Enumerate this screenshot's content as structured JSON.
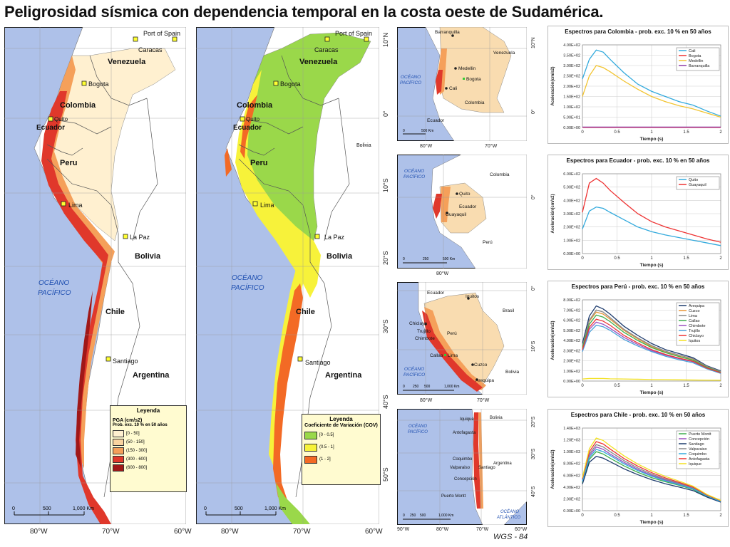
{
  "title": "Peligrosidad sísmica con dependencia temporal en la costa oeste de Sudamérica.",
  "colors": {
    "ocean": "#aec1e9",
    "land": "#ffffff",
    "pga_0_50": "#fff0d0",
    "pga_50_150": "#f9d4a0",
    "pga_150_300": "#f5a05a",
    "pga_300_600": "#e0382b",
    "pga_600_800": "#a01818",
    "cov_0_05": "#9ad84a",
    "cov_05_1": "#f7f23a",
    "cov_1_2": "#f36a25"
  },
  "map1": {
    "labels": {
      "port_of_spain": "Port of Spain",
      "caracas": "Caracas",
      "venezuela": "Venezuela",
      "bogota": "Bogota",
      "colombia": "Colombia",
      "quito": "Quito",
      "ecuador": "Ecuador",
      "peru": "Peru",
      "lima": "Lima",
      "la_paz": "La Paz",
      "bolivia": "Bolivia",
      "oceano1": "OCÉANO",
      "oceano2": "PACÍFICO",
      "chile": "Chile",
      "santiago": "Santiago",
      "argentina": "Argentina"
    },
    "legend": {
      "title": "Leyenda",
      "subtitle": "PGA (cm/s2)",
      "note": "Prob. exc. 10 % en 50 años",
      "items": [
        "[0 - 50]",
        "(50 - 150]",
        "(150 - 300]",
        "(300 - 600]",
        "(600 - 800]"
      ]
    },
    "scale": [
      "0",
      "500",
      "1,000 Km"
    ]
  },
  "map2": {
    "labels": {
      "port_of_spain": "Port of Spain",
      "caracas": "Caracas",
      "venezuela": "Venezuela",
      "bogota": "Bogota",
      "colombia": "Colombia",
      "quito": "Quito",
      "ecuador": "Ecuador",
      "peru": "Peru",
      "lima": "Lima",
      "la_paz": "La Paz",
      "bolivia": "Bolivia",
      "bolivia_small": "Bolivia",
      "oceano1": "OCÉANO",
      "oceano2": "PACÍFICO",
      "chile": "Chile",
      "santiago": "Santiago",
      "argentina": "Argentina"
    },
    "legend": {
      "title": "Leyenda",
      "subtitle": "Coeficiente de Variación (COV)",
      "items": [
        "[0 - 0.5]",
        "(0.5 - 1]",
        "(1 - 2]"
      ]
    },
    "scale": [
      "0",
      "500",
      "1,000 Km"
    ]
  },
  "axis_bottom": [
    "80°W",
    "70°W",
    "60°W",
    "80°W",
    "70°W",
    "60°W"
  ],
  "axis_lat": [
    "10°N",
    "0°",
    "10°S",
    "20°S",
    "30°S",
    "40°S",
    "50°S"
  ],
  "inset_colombia": {
    "labels": {
      "barranquilla": "Barranquilla",
      "venezuela": "Venezuela",
      "medellin": "Medellin",
      "bogota": "Bogota",
      "oceano1": "OCÉANO",
      "oceano2": "PACÍFICO",
      "cali": "Cali",
      "colombia": "Colombia",
      "ecuador": "Ecuador"
    },
    "scale": [
      "0",
      "500 Km"
    ],
    "lon": [
      "80°W",
      "70°W"
    ],
    "lat": [
      "10°N",
      "0°"
    ]
  },
  "inset_ecuador": {
    "labels": {
      "oceano1": "OCÉANO",
      "oceano2": "PACÍFICO",
      "colombia": "Colombia",
      "quito": "Quito",
      "ecuador": "Ecuador",
      "guayaquil": "Guayaquil",
      "peru": "Perú"
    },
    "scale": [
      "0",
      "250",
      "500 Km"
    ],
    "lon": [
      "80°W"
    ],
    "lat": [
      "0°"
    ]
  },
  "inset_peru": {
    "labels": {
      "ecuador": "Ecuador",
      "iquitos": "Iquitos",
      "brasil": "Brasil",
      "chiclayo": "Chiclayo",
      "trujillo": "Trujillo",
      "chimbote": "Chimbote",
      "peru": "Perú",
      "callao": "Callao",
      "lima": "Lima",
      "oceano1": "OCÉANO",
      "oceano2": "PACÍFICO",
      "cuzco": "Cuzco",
      "bolivia": "Bolivia",
      "arequipa": "Arequipa"
    },
    "scale": [
      "0",
      "250",
      "500",
      "1,000 Km"
    ],
    "lon": [
      "80°W",
      "70°W"
    ],
    "lat": [
      "0°",
      "10°S"
    ]
  },
  "inset_chile": {
    "labels": {
      "oceano1": "OCÉANO",
      "oceano2": "PACÍFICO",
      "iquique": "Iquique",
      "bolivia": "Bolivia",
      "antofagasta": "Antofagasta",
      "coquimbo": "Coquimbo",
      "argentina": "Argentina",
      "valparaiso": "Valparaiso",
      "santiago": "Santiago",
      "concepcion": "Concepción",
      "puerto_montt": "Puerto Montt",
      "oceano_a1": "OCÉANO",
      "oceano_a2": "ATLÁNTICO"
    },
    "scale": [
      "0",
      "250",
      "500",
      "1,000 Km"
    ],
    "lon": [
      "90°W",
      "80°W",
      "70°W",
      "60°W"
    ],
    "lat": [
      "20°S",
      "30°S",
      "40°S"
    ]
  },
  "wgs": "WGS - 84",
  "chart_data": [
    {
      "type": "line",
      "title": "Espectros  para Colombia - prob. exc. 10 % en 50 años",
      "xlabel": "Tiempo (s)",
      "ylabel": "Aceleración(cm/s2)",
      "xlim": [
        0,
        2
      ],
      "ylim": [
        0,
        400
      ],
      "yticks": [
        "0.00E+00",
        "5.00E+01",
        "1.00E+02",
        "1.50E+02",
        "2.00E+02",
        "2.50E+02",
        "3.00E+02",
        "3.50E+02",
        "4.00E+02"
      ],
      "xticks": [
        "0",
        "0.5",
        "1",
        "1.5",
        "2"
      ],
      "x": [
        0,
        0.1,
        0.2,
        0.3,
        0.4,
        0.6,
        0.8,
        1.0,
        1.2,
        1.4,
        1.6,
        1.8,
        2.0
      ],
      "series": [
        {
          "name": "Cali",
          "color": "#33aadd",
          "values": [
            235,
            330,
            375,
            365,
            330,
            265,
            210,
            175,
            150,
            125,
            108,
            80,
            55
          ]
        },
        {
          "name": "Bogota",
          "color": "#ee3333",
          "values": [
            0,
            0,
            0,
            0,
            0,
            0,
            0,
            0,
            0,
            0,
            0,
            0,
            0
          ]
        },
        {
          "name": "Medellin",
          "color": "#f2c431",
          "values": [
            150,
            250,
            300,
            290,
            270,
            225,
            185,
            150,
            125,
            105,
            90,
            70,
            50
          ]
        },
        {
          "name": "Barranquilla",
          "color": "#8f3aa6",
          "values": [
            2,
            2,
            2,
            2,
            2,
            2,
            2,
            2,
            2,
            2,
            2,
            2,
            2
          ]
        }
      ],
      "legend": "top-right"
    },
    {
      "type": "line",
      "title": "Espectros  para Ecuador - prob. exc. 10 % en 50 años",
      "xlabel": "Tiempo (s)",
      "ylabel": "Aceleración(cm/s2)",
      "xlim": [
        0,
        2
      ],
      "ylim": [
        0,
        600
      ],
      "yticks": [
        "0.00E+00",
        "1.00E+02",
        "2.00E+02",
        "3.00E+02",
        "4.00E+02",
        "5.00E+02",
        "6.00E+02"
      ],
      "xticks": [
        "0",
        "0.5",
        "1",
        "1.5",
        "2"
      ],
      "x": [
        0,
        0.1,
        0.2,
        0.3,
        0.4,
        0.6,
        0.8,
        1.0,
        1.2,
        1.4,
        1.6,
        1.8,
        2.0
      ],
      "series": [
        {
          "name": "Quito",
          "color": "#33aadd",
          "values": [
            185,
            320,
            350,
            340,
            310,
            255,
            200,
            165,
            140,
            120,
            100,
            80,
            60
          ]
        },
        {
          "name": "Guayaquil",
          "color": "#ee3333",
          "values": [
            310,
            530,
            565,
            530,
            475,
            385,
            300,
            240,
            200,
            170,
            140,
            110,
            85
          ]
        }
      ],
      "legend": "top-right"
    },
    {
      "type": "line",
      "title": "Espectros  para Perú - prob. exc. 10 % en 50 años",
      "xlabel": "Tiempo (s)",
      "ylabel": "Aceleración(cm/s2)",
      "xlim": [
        0,
        2
      ],
      "ylim": [
        0,
        800
      ],
      "yticks": [
        "0.00E+00",
        "1.00E+02",
        "2.00E+02",
        "3.00E+02",
        "4.00E+02",
        "5.00E+02",
        "6.00E+02",
        "7.00E+02",
        "8.00E+02"
      ],
      "xticks": [
        "0",
        "0.5",
        "1",
        "1.5",
        "2"
      ],
      "x": [
        0,
        0.1,
        0.2,
        0.3,
        0.4,
        0.6,
        0.8,
        1.0,
        1.2,
        1.4,
        1.6,
        1.8,
        2.0
      ],
      "series": [
        {
          "name": "Arequipa",
          "color": "#1e3c6e",
          "values": [
            370,
            640,
            740,
            710,
            660,
            540,
            450,
            370,
            310,
            270,
            230,
            150,
            100
          ]
        },
        {
          "name": "Cuzco",
          "color": "#e89434",
          "values": [
            340,
            590,
            680,
            660,
            610,
            500,
            415,
            340,
            285,
            245,
            210,
            140,
            90
          ]
        },
        {
          "name": "Lima",
          "color": "#888888",
          "values": [
            345,
            600,
            700,
            680,
            625,
            510,
            425,
            350,
            295,
            255,
            220,
            145,
            95
          ]
        },
        {
          "name": "Callao",
          "color": "#3eae4c",
          "values": [
            330,
            560,
            650,
            630,
            585,
            480,
            400,
            330,
            280,
            240,
            205,
            135,
            85
          ]
        },
        {
          "name": "Chimbote",
          "color": "#9a4fc0",
          "values": [
            300,
            510,
            580,
            560,
            520,
            430,
            360,
            300,
            255,
            220,
            190,
            125,
            80
          ]
        },
        {
          "name": "Trujillo",
          "color": "#4aa0d8",
          "values": [
            290,
            480,
            550,
            535,
            500,
            410,
            345,
            290,
            245,
            210,
            180,
            120,
            75
          ]
        },
        {
          "name": "Chiclayo",
          "color": "#ee3333",
          "values": [
            310,
            530,
            610,
            590,
            550,
            450,
            375,
            310,
            262,
            225,
            195,
            128,
            82
          ]
        },
        {
          "name": "Iquitos",
          "color": "#f2e020",
          "values": [
            20,
            25,
            25,
            25,
            22,
            20,
            18,
            15,
            14,
            12,
            10,
            9,
            8
          ]
        }
      ],
      "legend": "top-right"
    },
    {
      "type": "line",
      "title": "Espectros  para Chile - prob. exc. 10 % en 50 años",
      "xlabel": "Tiempo (s)",
      "ylabel": "Aceleración(cm/s2)",
      "xlim": [
        0,
        2
      ],
      "ylim": [
        0,
        1400
      ],
      "yticks": [
        "0.00E+00",
        "2.00E+02",
        "4.00E+02",
        "6.00E+02",
        "8.00E+02",
        "1.00E+03",
        "1.20E+03",
        "1.40E+03"
      ],
      "xticks": [
        "0",
        "0.5",
        "1",
        "1.5",
        "2"
      ],
      "x": [
        0,
        0.1,
        0.2,
        0.3,
        0.4,
        0.6,
        0.8,
        1.0,
        1.2,
        1.4,
        1.6,
        1.8,
        2.0
      ],
      "series": [
        {
          "name": "Puerto Montt",
          "color": "#3eae4c",
          "values": [
            470,
            870,
            1000,
            960,
            890,
            760,
            650,
            560,
            490,
            430,
            360,
            240,
            150
          ]
        },
        {
          "name": "Concepción",
          "color": "#9a4fc0",
          "values": [
            500,
            930,
            1080,
            1040,
            960,
            820,
            700,
            600,
            520,
            455,
            380,
            255,
            160
          ]
        },
        {
          "name": "Santiago",
          "color": "#1e3c6e",
          "values": [
            450,
            820,
            920,
            890,
            830,
            710,
            610,
            525,
            455,
            400,
            340,
            230,
            145
          ]
        },
        {
          "name": "Valparaiso",
          "color": "#888888",
          "values": [
            520,
            960,
            1120,
            1080,
            1000,
            850,
            725,
            620,
            535,
            465,
            390,
            260,
            165
          ]
        },
        {
          "name": "Coquimbo",
          "color": "#33aadd",
          "values": [
            500,
            900,
            1040,
            1000,
            935,
            795,
            680,
            585,
            505,
            440,
            370,
            250,
            155
          ]
        },
        {
          "name": "Antofagasta",
          "color": "#ee3333",
          "values": [
            540,
            1000,
            1170,
            1130,
            1045,
            885,
            755,
            645,
            555,
            480,
            400,
            265,
            170
          ]
        },
        {
          "name": "Iquique",
          "color": "#f2e020",
          "values": [
            560,
            1050,
            1230,
            1190,
            1100,
            930,
            790,
            675,
            580,
            500,
            415,
            275,
            175
          ]
        }
      ],
      "legend": "top-right"
    }
  ]
}
